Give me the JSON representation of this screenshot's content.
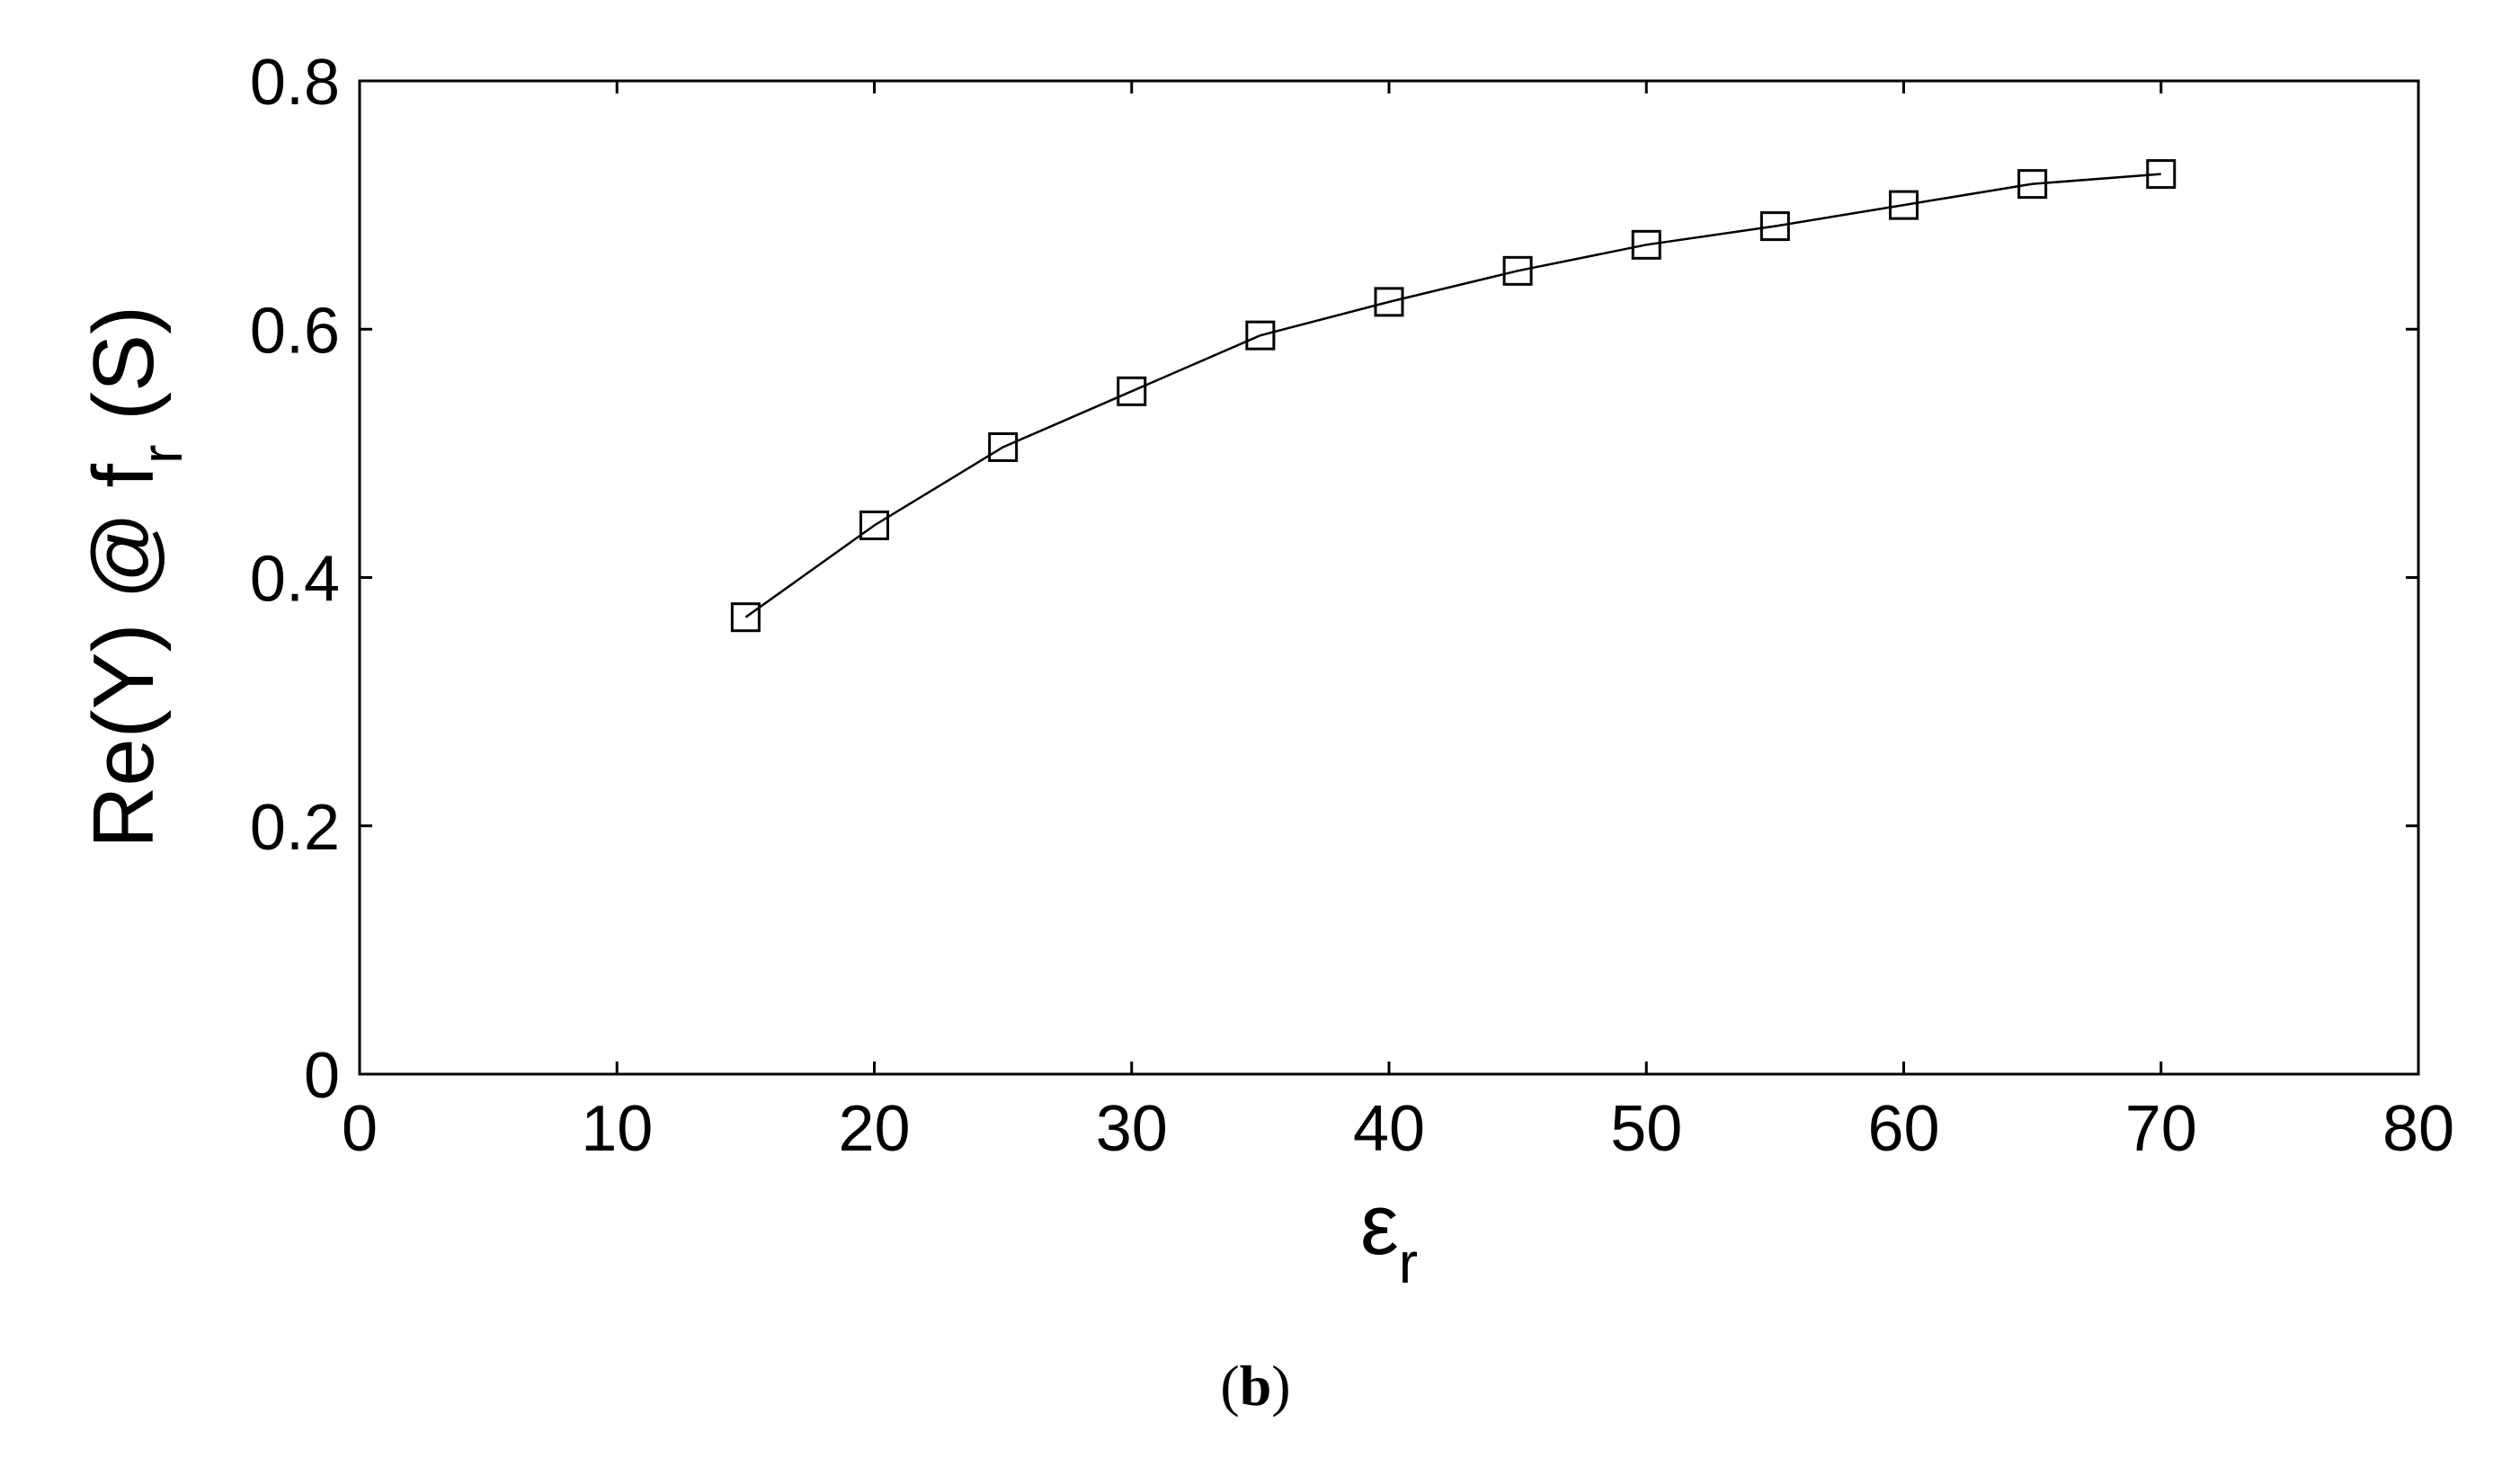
{
  "chart_data": {
    "type": "line",
    "marker": "square",
    "grid": false,
    "x": [
      15,
      20,
      25,
      30,
      35,
      40,
      45,
      50,
      55,
      60,
      65,
      70
    ],
    "series": [
      {
        "values": [
          0.368,
          0.442,
          0.505,
          0.55,
          0.595,
          0.622,
          0.647,
          0.668,
          0.683,
          0.7,
          0.717,
          0.725
        ]
      }
    ],
    "xlim": [
      0,
      80
    ],
    "ylim": [
      0,
      0.8
    ],
    "xticks": [
      "0",
      "10",
      "20",
      "30",
      "40",
      "50",
      "60",
      "70",
      "80"
    ],
    "yticks": [
      "0",
      "0.2",
      "0.4",
      "0.6",
      "0.8"
    ],
    "xlabel": {
      "main": "ε",
      "sub": "r"
    },
    "ylabel": {
      "main_before": "Re(Y) @ f",
      "sub": "r",
      "main_after": " (S)"
    }
  },
  "caption": {
    "open": "(",
    "letter": "b",
    "close": ")"
  }
}
